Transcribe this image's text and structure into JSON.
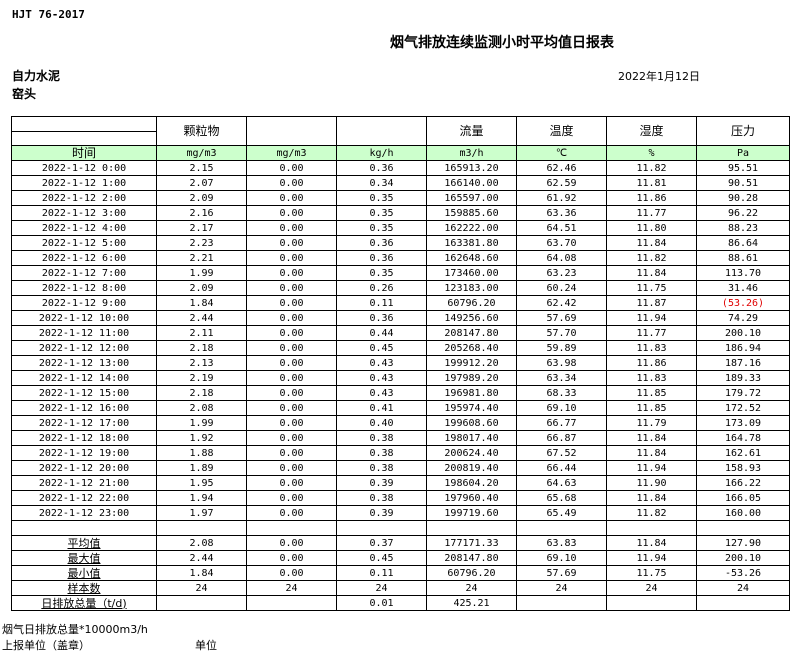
{
  "standard": "HJT  76-2017",
  "title": "烟气排放连续监测小时平均值日报表",
  "company": "自力水泥",
  "site": "窑头",
  "date": "2022年1月12日",
  "colors": {
    "units_row_bg": "#ccffcc",
    "negative_text": "#e00000"
  },
  "table": {
    "headers": [
      "",
      "颗粒物",
      "",
      "",
      "流量",
      "温度",
      "湿度",
      "压力"
    ],
    "units": [
      "时间",
      "mg/m3",
      "mg/m3",
      "kg/h",
      "m3/h",
      "℃",
      "%",
      "Pa"
    ],
    "rows": [
      [
        "2022-1-12 0:00",
        "2.15",
        "0.00",
        "0.36",
        "165913.20",
        "62.46",
        "11.82",
        "95.51"
      ],
      [
        "2022-1-12 1:00",
        "2.07",
        "0.00",
        "0.34",
        "166140.00",
        "62.59",
        "11.81",
        "90.51"
      ],
      [
        "2022-1-12 2:00",
        "2.09",
        "0.00",
        "0.35",
        "165597.00",
        "61.92",
        "11.86",
        "90.28"
      ],
      [
        "2022-1-12 3:00",
        "2.16",
        "0.00",
        "0.35",
        "159885.60",
        "63.36",
        "11.77",
        "96.22"
      ],
      [
        "2022-1-12 4:00",
        "2.17",
        "0.00",
        "0.35",
        "162222.00",
        "64.51",
        "11.80",
        "88.23"
      ],
      [
        "2022-1-12 5:00",
        "2.23",
        "0.00",
        "0.36",
        "163381.80",
        "63.70",
        "11.84",
        "86.64"
      ],
      [
        "2022-1-12 6:00",
        "2.21",
        "0.00",
        "0.36",
        "162648.60",
        "64.08",
        "11.82",
        "88.61"
      ],
      [
        "2022-1-12 7:00",
        "1.99",
        "0.00",
        "0.35",
        "173460.00",
        "63.23",
        "11.84",
        "113.70"
      ],
      [
        "2022-1-12 8:00",
        "2.09",
        "0.00",
        "0.26",
        "123183.00",
        "60.24",
        "11.75",
        "31.46"
      ],
      [
        "2022-1-12 9:00",
        "1.84",
        "0.00",
        "0.11",
        "60796.20",
        "62.42",
        "11.87",
        "(53.26)"
      ],
      [
        "2022-1-12 10:00",
        "2.44",
        "0.00",
        "0.36",
        "149256.60",
        "57.69",
        "11.94",
        "74.29"
      ],
      [
        "2022-1-12 11:00",
        "2.11",
        "0.00",
        "0.44",
        "208147.80",
        "57.70",
        "11.77",
        "200.10"
      ],
      [
        "2022-1-12 12:00",
        "2.18",
        "0.00",
        "0.45",
        "205268.40",
        "59.89",
        "11.83",
        "186.94"
      ],
      [
        "2022-1-12 13:00",
        "2.13",
        "0.00",
        "0.43",
        "199912.20",
        "63.98",
        "11.86",
        "187.16"
      ],
      [
        "2022-1-12 14:00",
        "2.19",
        "0.00",
        "0.43",
        "197989.20",
        "63.34",
        "11.83",
        "189.33"
      ],
      [
        "2022-1-12 15:00",
        "2.18",
        "0.00",
        "0.43",
        "196981.80",
        "68.33",
        "11.85",
        "179.72"
      ],
      [
        "2022-1-12 16:00",
        "2.08",
        "0.00",
        "0.41",
        "195974.40",
        "69.10",
        "11.85",
        "172.52"
      ],
      [
        "2022-1-12 17:00",
        "1.99",
        "0.00",
        "0.40",
        "199608.60",
        "66.77",
        "11.79",
        "173.09"
      ],
      [
        "2022-1-12 18:00",
        "1.92",
        "0.00",
        "0.38",
        "198017.40",
        "66.87",
        "11.84",
        "164.78"
      ],
      [
        "2022-1-12 19:00",
        "1.88",
        "0.00",
        "0.38",
        "200624.40",
        "67.52",
        "11.84",
        "162.61"
      ],
      [
        "2022-1-12 20:00",
        "1.89",
        "0.00",
        "0.38",
        "200819.40",
        "66.44",
        "11.94",
        "158.93"
      ],
      [
        "2022-1-12 21:00",
        "1.95",
        "0.00",
        "0.39",
        "198604.20",
        "64.63",
        "11.90",
        "166.22"
      ],
      [
        "2022-1-12 22:00",
        "1.94",
        "0.00",
        "0.38",
        "197960.40",
        "65.68",
        "11.84",
        "166.05"
      ],
      [
        "2022-1-12 23:00",
        "1.97",
        "0.00",
        "0.39",
        "199719.60",
        "65.49",
        "11.82",
        "160.00"
      ]
    ],
    "summary": [
      [
        "平均值",
        "2.08",
        "0.00",
        "0.37",
        "177171.33",
        "63.83",
        "11.84",
        "127.90"
      ],
      [
        "最大值",
        "2.44",
        "0.00",
        "0.45",
        "208147.80",
        "69.10",
        "11.94",
        "200.10"
      ],
      [
        "最小值",
        "1.84",
        "0.00",
        "0.11",
        "60796.20",
        "57.69",
        "11.75",
        "-53.26"
      ],
      [
        "样本数",
        "24",
        "24",
        "24",
        "24",
        "24",
        "24",
        "24"
      ],
      [
        "日排放总量（t/d)",
        "",
        "",
        "0.01",
        "425.21",
        "",
        "",
        ""
      ]
    ]
  },
  "footer": {
    "note": "烟气日排放总量*10000m3/h",
    "reporter": "上报单位（盖章）",
    "unit": "单位"
  }
}
